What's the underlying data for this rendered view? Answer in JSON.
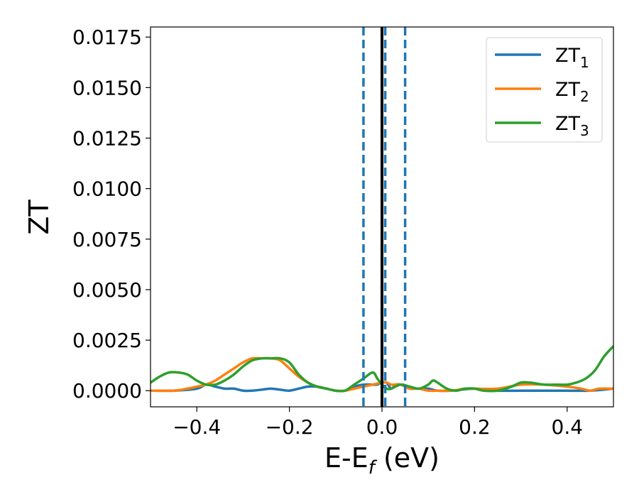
{
  "chart_data": {
    "type": "line",
    "xlabel": "E-E",
    "xlabel_sub": "f",
    "xlabel_unit": " (eV)",
    "ylabel": "ZT",
    "xlim": [
      -0.5,
      0.5
    ],
    "ylim": [
      -0.0008,
      0.018
    ],
    "xticks": [
      -0.4,
      -0.2,
      0.0,
      0.2,
      0.4
    ],
    "xtick_labels": [
      "−0.4",
      "−0.2",
      "0.0",
      "0.2",
      "0.4"
    ],
    "yticks": [
      0.0,
      0.0025,
      0.005,
      0.0075,
      0.01,
      0.0125,
      0.015,
      0.0175
    ],
    "ytick_labels": [
      "0.0000",
      "0.0025",
      "0.0050",
      "0.0075",
      "0.0100",
      "0.0125",
      "0.0150",
      "0.0175"
    ],
    "grid": false,
    "legend_position": "top-right",
    "vlines": [
      {
        "x": -0.04,
        "style": "dashed",
        "color": "#1f77b4"
      },
      {
        "x": 0.0,
        "style": "solid",
        "color": "#000000"
      },
      {
        "x": 0.007,
        "style": "dashed",
        "color": "#1f77b4"
      },
      {
        "x": 0.05,
        "style": "dashed",
        "color": "#1f77b4"
      }
    ],
    "series": [
      {
        "name": "ZT",
        "subscript": "1",
        "color": "#1f77b4",
        "x": [
          -0.5,
          -0.45,
          -0.4,
          -0.38,
          -0.36,
          -0.34,
          -0.32,
          -0.3,
          -0.28,
          -0.26,
          -0.24,
          -0.22,
          -0.2,
          -0.18,
          -0.16,
          -0.14,
          -0.12,
          -0.1,
          -0.08,
          -0.06,
          -0.04,
          -0.02,
          -0.01,
          0.0,
          0.01,
          0.02,
          0.03,
          0.04,
          0.05,
          0.06,
          0.07,
          0.08,
          0.1,
          0.12,
          0.15,
          0.2,
          0.25,
          0.3,
          0.35,
          0.4,
          0.45,
          0.5
        ],
        "y": [
          0.0,
          0.0,
          0.0001,
          0.0003,
          0.0002,
          0.0001,
          0.0001,
          0.0,
          0.0,
          5e-05,
          0.0001,
          5e-05,
          0.0,
          0.0001,
          0.0002,
          0.0002,
          0.0001,
          0.0,
          0.0,
          0.0002,
          0.0003,
          0.0003,
          0.0003,
          0.0004,
          0.0004,
          0.0001,
          0.0003,
          0.0003,
          0.0002,
          0.0001,
          0.0001,
          0.0001,
          0.0001,
          0.0,
          0.0,
          0.0001,
          0.0,
          0.0,
          0.0,
          0.0,
          0.0,
          0.0001
        ]
      },
      {
        "name": "ZT",
        "subscript": "2",
        "color": "#ff7f0e",
        "x": [
          -0.5,
          -0.45,
          -0.42,
          -0.4,
          -0.38,
          -0.36,
          -0.34,
          -0.32,
          -0.3,
          -0.28,
          -0.26,
          -0.24,
          -0.22,
          -0.2,
          -0.18,
          -0.16,
          -0.14,
          -0.12,
          -0.1,
          -0.08,
          -0.06,
          -0.04,
          -0.02,
          0.0,
          0.01,
          0.02,
          0.03,
          0.04,
          0.05,
          0.06,
          0.08,
          0.1,
          0.12,
          0.15,
          0.18,
          0.2,
          0.25,
          0.3,
          0.35,
          0.4,
          0.43,
          0.45,
          0.47,
          0.5
        ],
        "y": [
          0.0,
          0.0,
          0.0001,
          0.0002,
          0.0003,
          0.0005,
          0.0008,
          0.0011,
          0.0014,
          0.0016,
          0.0016,
          0.0016,
          0.0015,
          0.0011,
          0.0007,
          0.0004,
          0.0002,
          0.0001,
          0.0,
          0.0,
          0.0001,
          0.0002,
          0.0003,
          0.0004,
          0.0004,
          0.0003,
          0.0003,
          0.0003,
          0.0002,
          0.0001,
          0.0001,
          0.0,
          0.0,
          0.0,
          0.0001,
          0.0001,
          0.0001,
          0.0003,
          0.0003,
          0.0002,
          0.0001,
          0.0,
          0.0001,
          0.0001
        ]
      },
      {
        "name": "ZT",
        "subscript": "3",
        "color": "#2ca02c",
        "x": [
          -0.5,
          -0.48,
          -0.46,
          -0.44,
          -0.42,
          -0.4,
          -0.38,
          -0.36,
          -0.34,
          -0.32,
          -0.3,
          -0.28,
          -0.26,
          -0.24,
          -0.22,
          -0.2,
          -0.18,
          -0.16,
          -0.14,
          -0.12,
          -0.1,
          -0.08,
          -0.06,
          -0.04,
          -0.02,
          -0.01,
          0.0,
          0.01,
          0.02,
          0.04,
          0.06,
          0.08,
          0.1,
          0.11,
          0.12,
          0.14,
          0.16,
          0.18,
          0.2,
          0.22,
          0.25,
          0.28,
          0.3,
          0.32,
          0.35,
          0.38,
          0.4,
          0.42,
          0.44,
          0.46,
          0.48,
          0.5
        ],
        "y": [
          0.0004,
          0.0007,
          0.0009,
          0.0009,
          0.0008,
          0.0005,
          0.0003,
          0.0003,
          0.0005,
          0.0008,
          0.0012,
          0.0015,
          0.0016,
          0.0016,
          0.0016,
          0.0014,
          0.0008,
          0.0004,
          0.0002,
          0.0001,
          0.0,
          0.0,
          0.0003,
          0.0006,
          0.0009,
          0.0006,
          0.0003,
          0.0001,
          0.0001,
          0.0003,
          0.0002,
          0.0001,
          0.0003,
          0.0005,
          0.0004,
          0.0001,
          0.0,
          0.0001,
          0.0001,
          0.0,
          0.0,
          0.0002,
          0.0004,
          0.0004,
          0.0003,
          0.0003,
          0.0003,
          0.0004,
          0.0006,
          0.001,
          0.0017,
          0.0022
        ]
      }
    ]
  }
}
